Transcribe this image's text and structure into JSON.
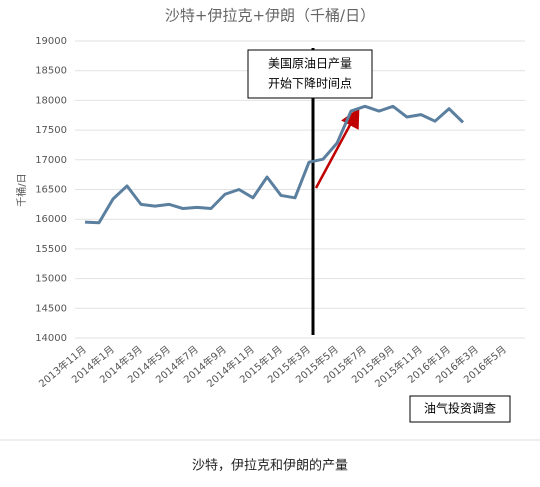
{
  "chart_data": {
    "type": "line",
    "title": "沙特+伊拉克+伊朗（千桶/日）",
    "y_label": "千桶/日",
    "categories": [
      "2013年11月",
      null,
      "2014年1月",
      null,
      "2014年3月",
      null,
      "2014年5月",
      null,
      "2014年7月",
      null,
      "2014年9月",
      null,
      "2014年11月",
      null,
      "2015年1月",
      null,
      "2015年3月",
      null,
      "2015年5月",
      null,
      "2015年7月",
      null,
      "2015年9月",
      null,
      "2015年11月",
      null,
      "2016年1月",
      null,
      "2016年3月",
      null,
      "2016年5月"
    ],
    "series": [
      {
        "name": "产量",
        "color": "#5b7f9f",
        "values": [
          15950,
          15940,
          16340,
          16560,
          16250,
          16220,
          16250,
          16180,
          16200,
          16180,
          16420,
          16500,
          16360,
          16710,
          16400,
          16360,
          16960,
          17010,
          17280,
          17820,
          17900,
          17820,
          17900,
          17720,
          17760,
          17650,
          17860,
          17630,
          null,
          null,
          null
        ]
      }
    ],
    "ylim": [
      14000,
      19000
    ],
    "yticks": [
      14000,
      14500,
      15000,
      15500,
      16000,
      16500,
      17000,
      17500,
      18000,
      18500,
      19000
    ],
    "grid": true,
    "annotation": [
      "美国原油日产量",
      "开始下降时间点"
    ],
    "source": "油气投资调查",
    "caption": "沙特，伊拉克和伊朗的产量"
  }
}
